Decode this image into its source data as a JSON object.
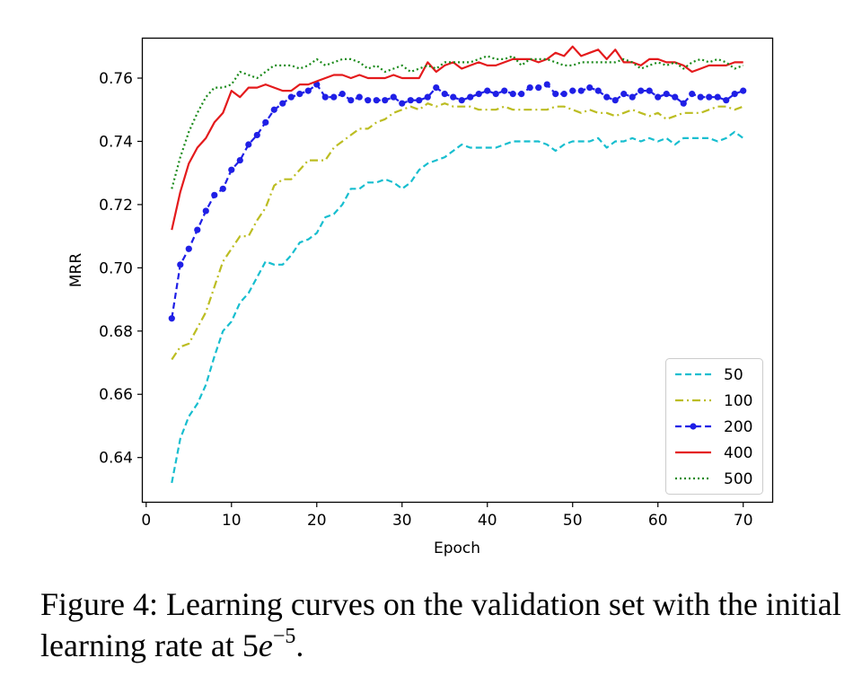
{
  "chart_data": {
    "type": "line",
    "xlabel": "Epoch",
    "ylabel": "MRR",
    "xlim": [
      -0.4,
      73.4
    ],
    "ylim": [
      0.626,
      0.7725
    ],
    "xticks": [
      0,
      10,
      20,
      30,
      40,
      50,
      60,
      70
    ],
    "yticks": [
      0.64,
      0.66,
      0.68,
      0.7,
      0.72,
      0.74,
      0.76
    ],
    "ytick_labels": [
      "0.64",
      "0.66",
      "0.68",
      "0.70",
      "0.72",
      "0.74",
      "0.76"
    ],
    "grid": false,
    "legend_position": "lower right",
    "x": [
      3,
      4,
      5,
      6,
      7,
      8,
      9,
      10,
      11,
      12,
      13,
      14,
      15,
      16,
      17,
      18,
      19,
      20,
      21,
      22,
      23,
      24,
      25,
      26,
      27,
      28,
      29,
      30,
      31,
      32,
      33,
      34,
      35,
      36,
      37,
      38,
      39,
      40,
      41,
      42,
      43,
      44,
      45,
      46,
      47,
      48,
      49,
      50,
      51,
      52,
      53,
      54,
      55,
      56,
      57,
      58,
      59,
      60,
      61,
      62,
      63,
      64,
      65,
      66,
      67,
      68,
      69,
      70
    ],
    "series": [
      {
        "name": "50",
        "color": "#17becf",
        "style": "dashed",
        "marker": "none",
        "values": [
          0.632,
          0.646,
          0.653,
          0.657,
          0.663,
          0.672,
          0.68,
          0.683,
          0.689,
          0.692,
          0.697,
          0.702,
          0.701,
          0.701,
          0.704,
          0.708,
          0.709,
          0.711,
          0.716,
          0.717,
          0.72,
          0.725,
          0.725,
          0.727,
          0.727,
          0.728,
          0.727,
          0.725,
          0.727,
          0.731,
          0.733,
          0.734,
          0.735,
          0.737,
          0.739,
          0.738,
          0.738,
          0.738,
          0.738,
          0.739,
          0.74,
          0.74,
          0.74,
          0.74,
          0.739,
          0.737,
          0.739,
          0.74,
          0.74,
          0.74,
          0.741,
          0.738,
          0.74,
          0.74,
          0.741,
          0.74,
          0.741,
          0.74,
          0.741,
          0.739,
          0.741,
          0.741,
          0.741,
          0.741,
          0.74,
          0.741,
          0.743,
          0.741
        ]
      },
      {
        "name": "100",
        "color": "#bcbd22",
        "style": "dashdot",
        "marker": "none",
        "values": [
          0.671,
          0.675,
          0.676,
          0.681,
          0.686,
          0.694,
          0.702,
          0.706,
          0.71,
          0.71,
          0.715,
          0.719,
          0.726,
          0.728,
          0.728,
          0.731,
          0.734,
          0.734,
          0.734,
          0.738,
          0.74,
          0.742,
          0.744,
          0.744,
          0.746,
          0.747,
          0.749,
          0.75,
          0.751,
          0.75,
          0.752,
          0.751,
          0.752,
          0.751,
          0.751,
          0.751,
          0.75,
          0.75,
          0.75,
          0.751,
          0.75,
          0.75,
          0.75,
          0.75,
          0.75,
          0.751,
          0.751,
          0.75,
          0.749,
          0.75,
          0.749,
          0.749,
          0.748,
          0.749,
          0.75,
          0.749,
          0.748,
          0.749,
          0.747,
          0.748,
          0.749,
          0.749,
          0.749,
          0.75,
          0.751,
          0.751,
          0.75,
          0.751
        ]
      },
      {
        "name": "200",
        "color": "#1f1fe6",
        "style": "dashed",
        "marker": "dot",
        "values": [
          0.684,
          0.701,
          0.706,
          0.712,
          0.718,
          0.723,
          0.725,
          0.731,
          0.734,
          0.739,
          0.742,
          0.746,
          0.75,
          0.752,
          0.754,
          0.755,
          0.756,
          0.758,
          0.754,
          0.754,
          0.755,
          0.753,
          0.754,
          0.753,
          0.753,
          0.753,
          0.754,
          0.752,
          0.753,
          0.753,
          0.754,
          0.757,
          0.755,
          0.754,
          0.753,
          0.754,
          0.755,
          0.756,
          0.755,
          0.756,
          0.755,
          0.755,
          0.757,
          0.757,
          0.758,
          0.755,
          0.755,
          0.756,
          0.756,
          0.757,
          0.756,
          0.754,
          0.753,
          0.755,
          0.754,
          0.756,
          0.756,
          0.754,
          0.755,
          0.754,
          0.752,
          0.755,
          0.754,
          0.754,
          0.754,
          0.753,
          0.755,
          0.756
        ]
      },
      {
        "name": "400",
        "color": "#e41a1c",
        "style": "solid",
        "marker": "none",
        "values": [
          0.712,
          0.724,
          0.733,
          0.738,
          0.741,
          0.746,
          0.749,
          0.756,
          0.754,
          0.757,
          0.757,
          0.758,
          0.757,
          0.756,
          0.756,
          0.758,
          0.758,
          0.759,
          0.76,
          0.761,
          0.761,
          0.76,
          0.761,
          0.76,
          0.76,
          0.76,
          0.761,
          0.76,
          0.76,
          0.76,
          0.765,
          0.762,
          0.764,
          0.765,
          0.763,
          0.764,
          0.765,
          0.764,
          0.764,
          0.765,
          0.766,
          0.766,
          0.766,
          0.765,
          0.766,
          0.768,
          0.767,
          0.77,
          0.767,
          0.768,
          0.769,
          0.766,
          0.769,
          0.765,
          0.765,
          0.764,
          0.766,
          0.766,
          0.765,
          0.765,
          0.764,
          0.762,
          0.763,
          0.764,
          0.764,
          0.764,
          0.765,
          0.765
        ]
      },
      {
        "name": "500",
        "color": "#1a8a1a",
        "style": "dotted",
        "marker": "none",
        "values": [
          0.725,
          0.735,
          0.743,
          0.749,
          0.754,
          0.757,
          0.757,
          0.758,
          0.762,
          0.761,
          0.76,
          0.762,
          0.764,
          0.764,
          0.764,
          0.763,
          0.764,
          0.766,
          0.764,
          0.765,
          0.766,
          0.766,
          0.765,
          0.763,
          0.764,
          0.762,
          0.763,
          0.764,
          0.762,
          0.763,
          0.764,
          0.763,
          0.765,
          0.765,
          0.765,
          0.765,
          0.766,
          0.767,
          0.766,
          0.766,
          0.767,
          0.764,
          0.766,
          0.766,
          0.766,
          0.765,
          0.764,
          0.764,
          0.765,
          0.765,
          0.765,
          0.765,
          0.765,
          0.766,
          0.765,
          0.763,
          0.764,
          0.765,
          0.764,
          0.765,
          0.763,
          0.765,
          0.766,
          0.765,
          0.766,
          0.765,
          0.763,
          0.764
        ]
      }
    ]
  },
  "caption": {
    "prefix": "Figure 4: Learning curves on the validation set with the initial learning rate at ",
    "math_base": "5",
    "math_var": "e",
    "math_exp": "−5",
    "suffix": "."
  }
}
